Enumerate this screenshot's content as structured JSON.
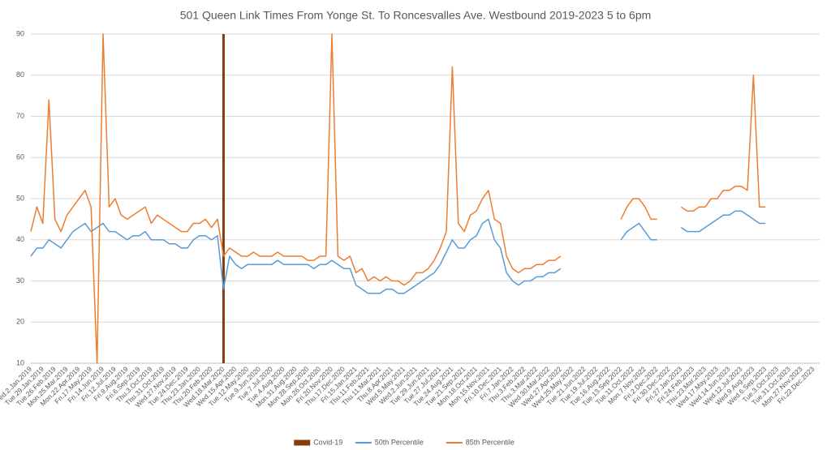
{
  "chart_data": {
    "type": "line",
    "title": "501 Queen Link Times From Yonge St. To Roncesvalles Ave. Westbound 2019-2023 5 to 6pm",
    "categories": [
      "Wed.2.Jan.2019",
      null,
      "Tue.29.Jan.2019",
      null,
      "Tue.26.Feb.2019",
      null,
      "Mon.25.Mar.2019",
      null,
      "Mon.22.Apr.2019",
      null,
      "Fri.17.May.2019",
      null,
      "Fri.14.Jun.2019",
      null,
      "Fri.12.Jul.2019",
      null,
      "Fri.9.Aug.2019",
      null,
      "Fri.6.Sep.2019",
      null,
      "Thu.3.Oct.2019",
      null,
      "Thu.31.Oct.2019",
      null,
      "Wed.27.Nov.2019",
      null,
      "Tue.24.Dec.2019",
      null,
      "Thu.23.Jan.2020",
      null,
      "Thu.20.Feb.2020",
      null,
      "Wed.18.Mar.2020",
      null,
      "Wed.15.Apr.2020",
      null,
      "Tue.12.May.2020",
      null,
      "Tue.9.Jun.2020",
      null,
      "Tue.7.Jul.2020",
      null,
      "Tue.4.Aug.2020",
      null,
      "Mon.31.Aug.2020",
      null,
      "Mon.28.Sep.2020",
      null,
      "Mon.26.Oct.2020",
      null,
      "Fri.20.Nov.2020",
      null,
      "Thu.17.Dec.2020",
      null,
      "Fri.15.Jan.2021",
      null,
      "Thu.11.Feb.2021",
      null,
      "Thu.11.Mar.2021",
      null,
      "Thu.8.Apr.2021",
      null,
      "Wed.5.May.2021",
      null,
      "Wed.2.Jun.2021",
      null,
      "Tue.29.Jun.2021",
      null,
      "Tue.27.Jul.2021",
      null,
      "Tue.24.Aug.2021",
      null,
      "Tue.21.Sep.2021",
      null,
      "Mon.18.Oct.2021",
      null,
      "Mon.15.Nov.2021",
      null,
      "Fri.10.Dec.2021",
      null,
      "Fri.7.Jan.2022",
      null,
      "Thu.3.Feb.2022",
      null,
      "Thu.3.Mar.2022",
      null,
      "Wed.30.Mar.2022",
      null,
      "Wed.27.Apr.2022",
      null,
      "Wed.25.May.2022",
      null,
      "Tue.21.Jun.2022",
      null,
      "Tue.19.Jul.2022",
      null,
      "Tue.16.Aug.2022",
      null,
      "Tue.13.Sep.2022",
      null,
      "Tue.11.Oct.2022",
      null,
      "Mon.7.Nov.2022",
      null,
      "Fri.2.Dec.2022",
      null,
      "Fri.30.Dec.2022",
      null,
      "Fri.27.Jan.2023",
      null,
      "Fri.24.Feb.2023",
      null,
      "Thu.23.Mar.2023",
      null,
      "Wed.17.May.2023",
      null,
      "Wed.14.Jun.2023",
      null,
      "Wed.12.Jul.2023",
      null,
      "Wed.9.Aug.2023",
      null,
      "Wed.6.Sep.2023",
      null,
      "Tue.3.Oct.2023",
      null,
      "Tue.31.Oct.2023",
      null,
      "Mon.27.Nov.2023",
      null,
      "Fri.22.Dec.2023",
      null
    ],
    "series": [
      {
        "name": "Covid-19",
        "type": "bar",
        "color": "#843c0c",
        "values": [
          null,
          null,
          null,
          null,
          null,
          null,
          null,
          null,
          null,
          null,
          null,
          null,
          null,
          null,
          null,
          null,
          null,
          null,
          null,
          null,
          null,
          null,
          null,
          null,
          null,
          null,
          null,
          null,
          null,
          null,
          null,
          null,
          90,
          null,
          null,
          null,
          null,
          null,
          null,
          null,
          null,
          null,
          null,
          null,
          null,
          null,
          null,
          null,
          null,
          null,
          null,
          null,
          null,
          null,
          null,
          null,
          null,
          null,
          null,
          null,
          null,
          null,
          null,
          null,
          null,
          null,
          null,
          null,
          null,
          null,
          null,
          null,
          null,
          null,
          null,
          null,
          null,
          null,
          null,
          null,
          null,
          null,
          null,
          null,
          null,
          null,
          null,
          null,
          null,
          null,
          null,
          null,
          null,
          null,
          null,
          null,
          null,
          null,
          null,
          null,
          null,
          null,
          null,
          null,
          null,
          null,
          null,
          null,
          null,
          null,
          null,
          null,
          null,
          null,
          null,
          null,
          null,
          null,
          null,
          null,
          null,
          null,
          null,
          null,
          null,
          null,
          null,
          null,
          null,
          null,
          null,
          null
        ]
      },
      {
        "name": "50th Percentile",
        "type": "line",
        "color": "#5b9bd5",
        "values": [
          36,
          38,
          38,
          40,
          39,
          38,
          40,
          42,
          43,
          44,
          42,
          43,
          44,
          42,
          42,
          41,
          40,
          41,
          41,
          42,
          40,
          40,
          40,
          39,
          39,
          38,
          38,
          40,
          41,
          41,
          40,
          41,
          28,
          36,
          34,
          33,
          34,
          34,
          34,
          34,
          34,
          35,
          34,
          34,
          34,
          34,
          34,
          33,
          34,
          34,
          35,
          34,
          33,
          33,
          29,
          28,
          27,
          27,
          27,
          28,
          28,
          27,
          27,
          28,
          29,
          30,
          31,
          32,
          34,
          37,
          40,
          38,
          38,
          40,
          41,
          44,
          45,
          40,
          38,
          32,
          30,
          29,
          30,
          30,
          31,
          31,
          32,
          32,
          33,
          null,
          null,
          null,
          null,
          null,
          null,
          null,
          null,
          null,
          40,
          42,
          43,
          44,
          42,
          40,
          40,
          null,
          null,
          null,
          43,
          42,
          42,
          42,
          43,
          44,
          45,
          46,
          46,
          47,
          47,
          46,
          45,
          44,
          44,
          null,
          null,
          null,
          null,
          null,
          null,
          null,
          null,
          null
        ]
      },
      {
        "name": "85th Percentile",
        "type": "line",
        "color": "#ed7d31",
        "values": [
          42,
          48,
          44,
          74,
          45,
          42,
          46,
          48,
          50,
          52,
          48,
          10,
          90,
          48,
          50,
          46,
          45,
          46,
          47,
          48,
          44,
          46,
          45,
          44,
          43,
          42,
          42,
          44,
          44,
          45,
          43,
          45,
          36,
          38,
          37,
          36,
          36,
          37,
          36,
          36,
          36,
          37,
          36,
          36,
          36,
          36,
          35,
          35,
          36,
          36,
          90,
          36,
          35,
          36,
          32,
          33,
          30,
          31,
          30,
          31,
          30,
          30,
          29,
          30,
          32,
          32,
          33,
          35,
          38,
          42,
          82,
          44,
          42,
          46,
          47,
          50,
          52,
          45,
          44,
          36,
          33,
          32,
          33,
          33,
          34,
          34,
          35,
          35,
          36,
          null,
          null,
          null,
          null,
          null,
          null,
          null,
          null,
          null,
          45,
          48,
          50,
          50,
          48,
          45,
          45,
          null,
          null,
          null,
          48,
          47,
          47,
          48,
          48,
          50,
          50,
          52,
          52,
          53,
          53,
          52,
          80,
          48,
          48,
          null,
          null,
          null,
          null,
          null,
          null,
          null,
          null,
          null
        ]
      }
    ],
    "ylim": [
      10,
      90
    ],
    "yticks": [
      10,
      20,
      30,
      40,
      50,
      60,
      70,
      80,
      90
    ],
    "grid": true,
    "legend": "bottom"
  }
}
